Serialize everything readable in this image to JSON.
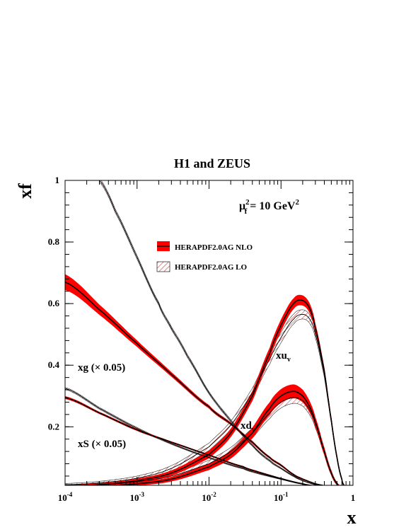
{
  "chart_data": {
    "type": "line",
    "title": "H1 and ZEUS",
    "xlabel": "x",
    "ylabel": "xf",
    "xscale": "log",
    "xlim": [
      0.0001,
      1
    ],
    "ylim": [
      0.01,
      1
    ],
    "x_ticks": [
      {
        "value": 0.0001,
        "base": "10",
        "exp": "-4"
      },
      {
        "value": 0.001,
        "base": "10",
        "exp": "-3"
      },
      {
        "value": 0.01,
        "base": "10",
        "exp": "-2"
      },
      {
        "value": 0.1,
        "base": "10",
        "exp": "-1"
      },
      {
        "value": 1,
        "base": "1",
        "exp": ""
      }
    ],
    "y_ticks": [
      {
        "value": 0.2,
        "label": "0.2"
      },
      {
        "value": 0.4,
        "label": "0.4"
      },
      {
        "value": 0.6,
        "label": "0.6"
      },
      {
        "value": 0.8,
        "label": "0.8"
      },
      {
        "value": 1.0,
        "label": "1"
      }
    ],
    "scale_label": {
      "prefix": "μ",
      "sup": "2",
      "sub": "f",
      "suffix": " = 10 GeV",
      "suffix_sup": "2"
    },
    "legend": [
      {
        "label": "HERAPDF2.0AG NLO",
        "style": "solid-red"
      },
      {
        "label": "HERAPDF2.0AG LO",
        "style": "hatched"
      }
    ],
    "curve_labels": [
      {
        "id": "xuv",
        "base": "xu",
        "sub": "v"
      },
      {
        "id": "xdv",
        "base": "xd",
        "sub": "v"
      },
      {
        "id": "xg",
        "text": "xg (× 0.05)"
      },
      {
        "id": "xS",
        "text": "xS (× 0.05)"
      }
    ],
    "series": [
      {
        "id": "xuv",
        "set": "NLO",
        "x": [
          0.0001,
          0.0003,
          0.001,
          0.003,
          0.01,
          0.02,
          0.04,
          0.07,
          0.1,
          0.15,
          0.2,
          0.25,
          0.3,
          0.4,
          0.5,
          0.6,
          0.7,
          0.75
        ],
        "y": [
          0.008,
          0.012,
          0.025,
          0.05,
          0.11,
          0.18,
          0.3,
          0.44,
          0.53,
          0.6,
          0.61,
          0.585,
          0.52,
          0.38,
          0.22,
          0.1,
          0.03,
          0.01
        ],
        "err": [
          0.003,
          0.004,
          0.006,
          0.008,
          0.012,
          0.013,
          0.015,
          0.017,
          0.018,
          0.017,
          0.016,
          0.015,
          0.013,
          0.01,
          0.008,
          0.006,
          0.004,
          0.003
        ]
      },
      {
        "id": "xuv",
        "set": "LO",
        "x": [
          0.0001,
          0.0003,
          0.001,
          0.003,
          0.01,
          0.02,
          0.04,
          0.07,
          0.1,
          0.15,
          0.2,
          0.25,
          0.3,
          0.4,
          0.5,
          0.6,
          0.7,
          0.75
        ],
        "y": [
          0.012,
          0.018,
          0.033,
          0.065,
          0.135,
          0.205,
          0.31,
          0.42,
          0.49,
          0.55,
          0.565,
          0.55,
          0.5,
          0.37,
          0.22,
          0.1,
          0.03,
          0.01
        ],
        "err": [
          0.004,
          0.005,
          0.007,
          0.009,
          0.012,
          0.013,
          0.015,
          0.016,
          0.017,
          0.016,
          0.015,
          0.014,
          0.012,
          0.01,
          0.008,
          0.006,
          0.004,
          0.003
        ]
      },
      {
        "id": "xdv",
        "set": "NLO",
        "x": [
          0.0001,
          0.0003,
          0.001,
          0.003,
          0.01,
          0.02,
          0.04,
          0.07,
          0.1,
          0.15,
          0.2,
          0.25,
          0.3,
          0.4,
          0.5,
          0.6,
          0.7
        ],
        "y": [
          0.004,
          0.007,
          0.015,
          0.03,
          0.07,
          0.11,
          0.18,
          0.26,
          0.3,
          0.315,
          0.3,
          0.265,
          0.215,
          0.12,
          0.05,
          0.015,
          0.004
        ],
        "err": [
          0.002,
          0.003,
          0.005,
          0.007,
          0.01,
          0.013,
          0.017,
          0.02,
          0.022,
          0.022,
          0.02,
          0.018,
          0.015,
          0.011,
          0.007,
          0.004,
          0.002
        ]
      },
      {
        "id": "xdv",
        "set": "LO",
        "x": [
          0.0001,
          0.0003,
          0.001,
          0.003,
          0.01,
          0.02,
          0.04,
          0.07,
          0.1,
          0.15,
          0.2,
          0.25,
          0.3,
          0.4,
          0.5,
          0.6,
          0.7
        ],
        "y": [
          0.008,
          0.012,
          0.022,
          0.04,
          0.08,
          0.12,
          0.18,
          0.245,
          0.28,
          0.295,
          0.285,
          0.255,
          0.21,
          0.12,
          0.05,
          0.015,
          0.004
        ],
        "err": [
          0.003,
          0.004,
          0.006,
          0.008,
          0.011,
          0.013,
          0.016,
          0.018,
          0.019,
          0.019,
          0.018,
          0.016,
          0.014,
          0.01,
          0.007,
          0.004,
          0.002
        ]
      },
      {
        "id": "xg",
        "set": "NLO",
        "x": [
          0.0001,
          0.0003,
          0.001,
          0.003,
          0.01,
          0.02,
          0.04,
          0.07,
          0.1,
          0.15,
          0.2,
          0.3,
          0.5,
          0.8
        ],
        "y": [
          0.67,
          0.58,
          0.47,
          0.37,
          0.265,
          0.21,
          0.15,
          0.1,
          0.075,
          0.045,
          0.03,
          0.015,
          0.005,
          0.001
        ],
        "err": [
          0.025,
          0.016,
          0.01,
          0.007,
          0.005,
          0.004,
          0.004,
          0.003,
          0.003,
          0.002,
          0.002,
          0.001,
          0.001,
          0.0005
        ]
      },
      {
        "id": "xg",
        "set": "LO",
        "x": [
          0.0003,
          0.0005,
          0.001,
          0.002,
          0.003,
          0.005,
          0.01,
          0.02,
          0.04,
          0.07,
          0.1,
          0.15,
          0.2,
          0.3,
          0.5,
          0.8
        ],
        "y": [
          1.0,
          0.9,
          0.75,
          0.6,
          0.52,
          0.43,
          0.31,
          0.22,
          0.14,
          0.09,
          0.065,
          0.04,
          0.025,
          0.012,
          0.004,
          0.001
        ],
        "err": [
          0.006,
          0.006,
          0.006,
          0.005,
          0.005,
          0.005,
          0.004,
          0.004,
          0.003,
          0.003,
          0.002,
          0.002,
          0.001,
          0.001,
          0.0005,
          0.0003
        ]
      },
      {
        "id": "xS",
        "set": "NLO",
        "x": [
          0.0001,
          0.0003,
          0.001,
          0.003,
          0.01,
          0.03,
          0.05,
          0.1,
          0.2,
          0.3,
          0.5,
          0.8
        ],
        "y": [
          0.295,
          0.245,
          0.19,
          0.15,
          0.108,
          0.07,
          0.052,
          0.032,
          0.015,
          0.008,
          0.003,
          0.001
        ],
        "err": [
          0.004,
          0.003,
          0.003,
          0.002,
          0.002,
          0.002,
          0.002,
          0.001,
          0.001,
          0.001,
          0.0005,
          0.0003
        ]
      },
      {
        "id": "xS",
        "set": "LO",
        "x": [
          0.0001,
          0.0003,
          0.001,
          0.003,
          0.01,
          0.03,
          0.05,
          0.1,
          0.2,
          0.3,
          0.5,
          0.8
        ],
        "y": [
          0.325,
          0.26,
          0.195,
          0.145,
          0.1,
          0.065,
          0.048,
          0.03,
          0.014,
          0.008,
          0.003,
          0.001
        ],
        "err": [
          0.003,
          0.003,
          0.003,
          0.002,
          0.002,
          0.002,
          0.002,
          0.001,
          0.001,
          0.001,
          0.0005,
          0.0003
        ]
      }
    ],
    "colors": {
      "nlo_band": "#ff0000",
      "nlo_line": "#000000",
      "lo_hatch": "#d00000",
      "axis": "#000000"
    },
    "grid": false
  }
}
